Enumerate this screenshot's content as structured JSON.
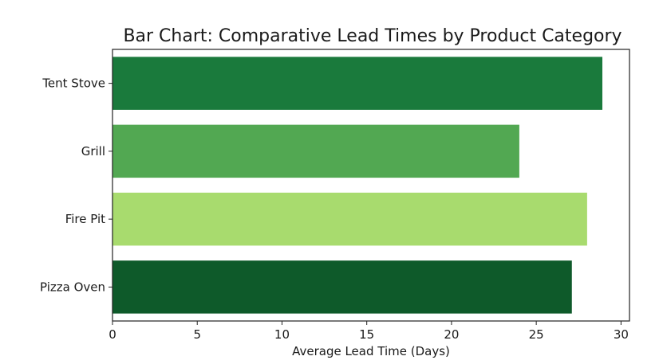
{
  "chart_data": {
    "type": "bar",
    "orientation": "horizontal",
    "title": "Bar Chart: Comparative Lead Times by Product Category",
    "xlabel": "Average Lead Time (Days)",
    "ylabel": "",
    "xlim": [
      0,
      30.5
    ],
    "xticks": [
      0,
      5,
      10,
      15,
      20,
      25,
      30
    ],
    "categories": [
      "Tent Stove",
      "Grill",
      "Fire Pit",
      "Pizza Oven"
    ],
    "values": [
      28.9,
      24.0,
      28.0,
      27.1
    ],
    "bar_colors": [
      "#1a7a3c",
      "#52a852",
      "#a8db6e",
      "#0e5a2a"
    ],
    "grid": false,
    "legend": "none"
  }
}
